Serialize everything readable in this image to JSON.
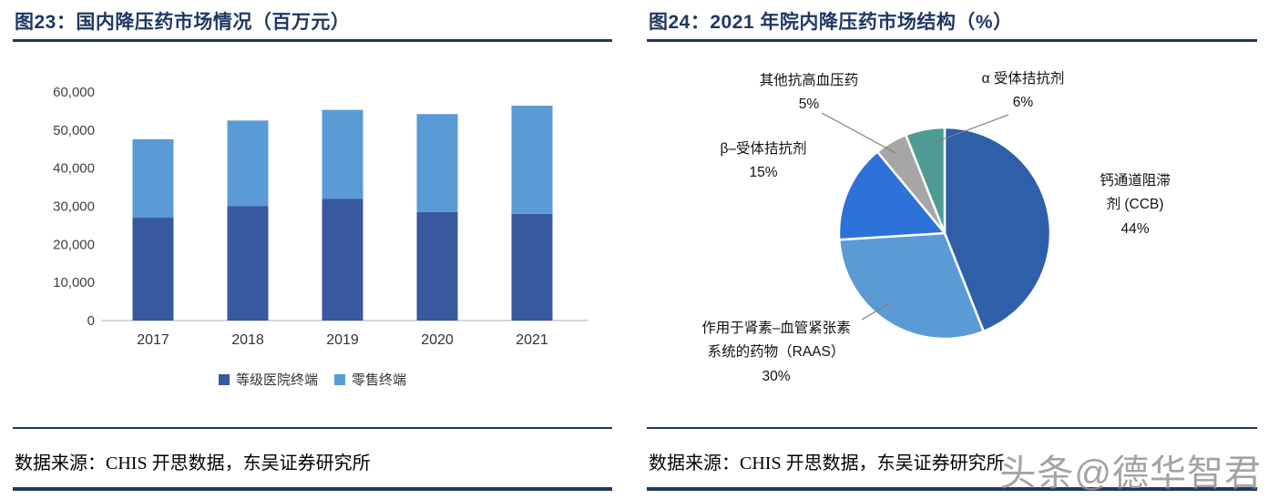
{
  "panels": [
    {
      "title": "图23：国内降压药市场情况（百万元）",
      "source": "数据来源：CHIS 开思数据，东吴证券研究所"
    },
    {
      "title": "图24：2021 年院内降压药市场结构（%）",
      "source": "数据来源：CHIS 开思数据，东吴证券研究所"
    }
  ],
  "watermark": "头条@德华智君",
  "colors": {
    "navy_rule": "#1F3864",
    "hospital_series": "#38589F",
    "retail_series": "#5B9BD5",
    "axis_line": "#BFBFBF"
  },
  "chart_data": [
    {
      "type": "bar",
      "subtype": "stacked",
      "title": "国内降压药市场情况（百万元）",
      "categories": [
        "2017",
        "2018",
        "2019",
        "2020",
        "2021"
      ],
      "series": [
        {
          "name": "等级医院终端",
          "color": "#38589F",
          "values": [
            27000,
            30000,
            32000,
            28500,
            28000
          ]
        },
        {
          "name": "零售终端",
          "color": "#5B9BD5",
          "values": [
            20600,
            22500,
            23300,
            25700,
            28400
          ]
        }
      ],
      "ylabel": "",
      "xlabel": "",
      "ylim": [
        0,
        60000
      ],
      "ytick_step": 10000,
      "grid": false,
      "legend_position": "bottom"
    },
    {
      "type": "pie",
      "title": "2021 年院内降压药市场结构（%）",
      "start_angle_deg": 0,
      "direction": "clockwise",
      "slices": [
        {
          "label": "钙通道阻滞剂 (CCB)",
          "pct_label": "44%",
          "value": 44,
          "color": "#2E5FA8"
        },
        {
          "label": "作用于肾素–血管紧张素系统的药物（RAAS）",
          "pct_label": "30%",
          "value": 30,
          "color": "#5B9BD5"
        },
        {
          "label": "β–受体拮抗剂",
          "pct_label": "15%",
          "value": 15,
          "color": "#2D72D9"
        },
        {
          "label": "其他抗高血压药",
          "pct_label": "5%",
          "value": 5,
          "color": "#A6A6A6"
        },
        {
          "label": "α 受体拮抗剂",
          "pct_label": "6%",
          "value": 6,
          "color": "#4F9B93"
        }
      ]
    }
  ]
}
